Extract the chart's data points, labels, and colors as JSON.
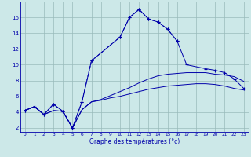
{
  "x_all": [
    0,
    1,
    2,
    3,
    4,
    5,
    6,
    7,
    8,
    9,
    10,
    11,
    12,
    13,
    14,
    15,
    16,
    17,
    18,
    19,
    20,
    21,
    22,
    23
  ],
  "line_main": [
    4.2,
    4.7,
    3.7,
    4.2,
    4.1,
    2.0,
    4.3,
    5.3,
    5.5,
    5.8,
    6.0,
    6.3,
    6.6,
    6.9,
    7.1,
    7.3,
    7.4,
    7.5,
    7.6,
    7.6,
    7.5,
    7.3,
    7.0,
    6.8
  ],
  "line_upper": [
    4.2,
    4.7,
    3.7,
    4.2,
    4.1,
    2.0,
    4.3,
    5.3,
    5.6,
    6.1,
    6.6,
    7.1,
    7.7,
    8.2,
    8.6,
    8.8,
    8.9,
    9.0,
    9.0,
    9.0,
    8.8,
    8.7,
    8.5,
    7.9
  ],
  "line_spike_x": [
    0,
    1,
    2,
    3,
    4,
    5,
    6,
    7,
    10,
    11,
    12,
    13,
    14,
    15,
    16,
    17,
    19,
    20,
    21,
    22,
    23
  ],
  "line_spike_y": [
    4.2,
    4.7,
    3.7,
    5.0,
    4.1,
    2.0,
    5.3,
    10.5,
    13.5,
    16.0,
    17.0,
    15.8,
    15.4,
    14.5,
    13.0,
    10.0,
    9.5,
    9.3,
    9.0,
    8.2,
    7.0
  ],
  "line_dashed_x": [
    0,
    1,
    2,
    3,
    4,
    5,
    6,
    7,
    10,
    11,
    12,
    13,
    14,
    15,
    16
  ],
  "line_dashed_y": [
    4.2,
    4.7,
    3.7,
    5.0,
    4.1,
    2.0,
    5.3,
    10.5,
    13.5,
    16.0,
    17.0,
    15.8,
    15.4,
    14.5,
    13.0
  ],
  "bg_color": "#cce8e8",
  "line_color": "#0000aa",
  "grid_color": "#99bbbb",
  "xlabel": "Graphe des températures (°c)",
  "ylim": [
    1.5,
    18
  ],
  "xlim": [
    -0.5,
    23.5
  ],
  "yticks": [
    2,
    4,
    6,
    8,
    10,
    12,
    14,
    16
  ],
  "xticks": [
    0,
    1,
    2,
    3,
    4,
    5,
    6,
    7,
    8,
    9,
    10,
    11,
    12,
    13,
    14,
    15,
    16,
    17,
    18,
    19,
    20,
    21,
    22,
    23
  ]
}
